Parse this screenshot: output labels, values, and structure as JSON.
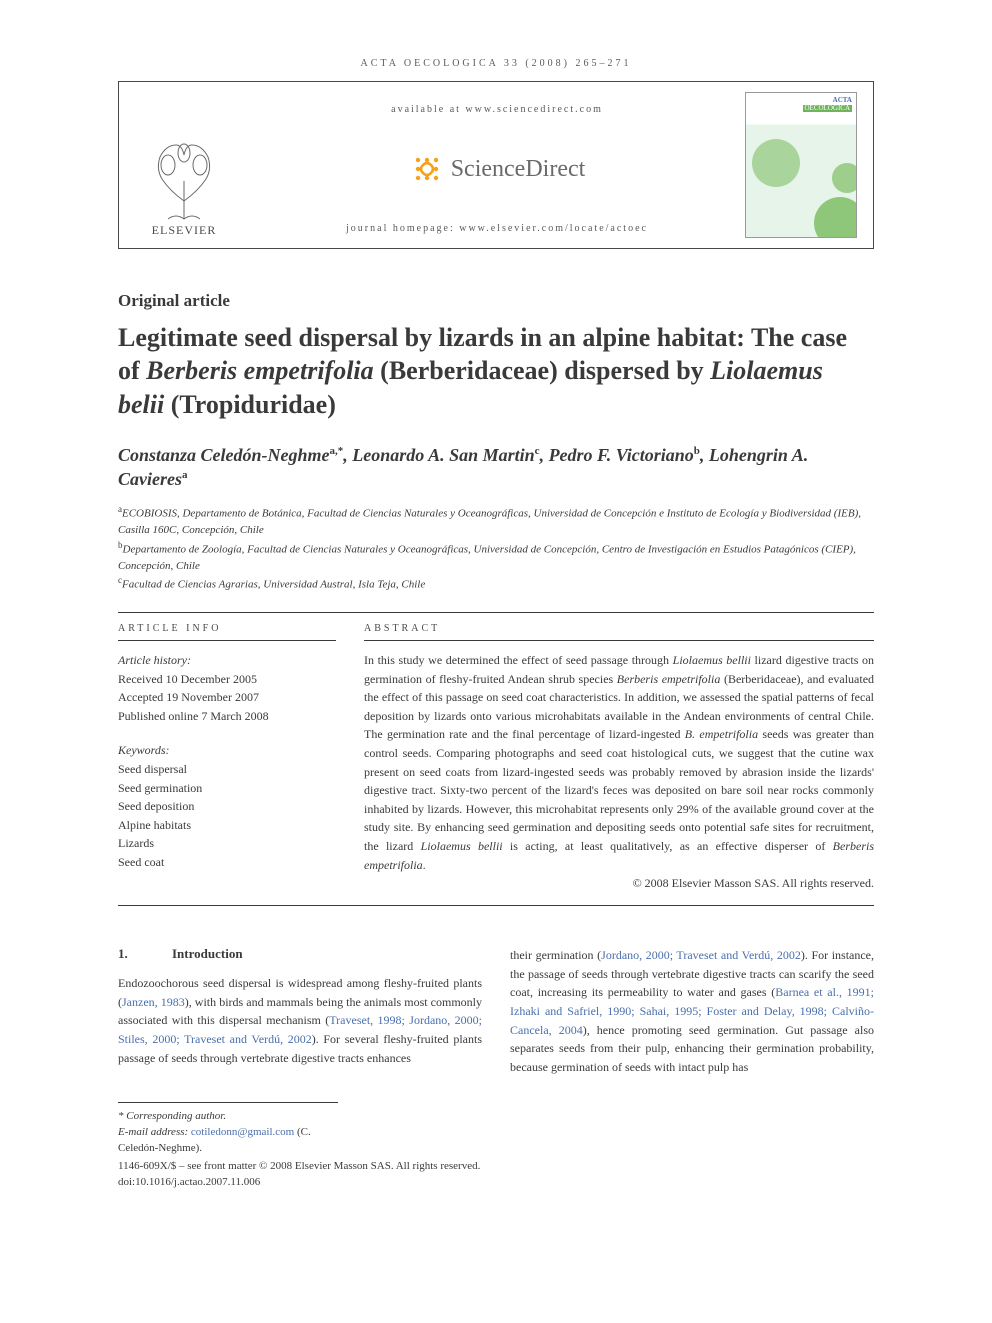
{
  "running_head": "ACTA OECOLOGICA 33 (2008) 265–271",
  "header": {
    "available": "available at www.sciencedirect.com",
    "sd_brand": "ScienceDirect",
    "homepage": "journal homepage: www.elsevier.com/locate/actoec",
    "elsevier": "ELSEVIER",
    "cover_acta": "ACTA",
    "cover_oeco": "OECOLOGICA"
  },
  "article_type": "Original article",
  "title_html": "Legitimate seed dispersal by lizards in an alpine habitat: The case of <em>Berberis empetrifolia</em> (Berberidaceae) dispersed by <em>Liolaemus belii</em> (Tropiduridae)",
  "authors_html": "Constanza Celedón-Neghme<sup>a,*</sup>, Leonardo A. San Martin<sup>c</sup>, Pedro F. Victoriano<sup>b</sup>, Lohengrin A. Cavieres<sup>a</sup>",
  "affiliations": {
    "a": "ECOBIOSIS, Departamento de Botánica, Facultad de Ciencias Naturales y Oceanográficas, Universidad de Concepción e Instituto de Ecología y Biodiversidad (IEB), Casilla 160C, Concepción, Chile",
    "b": "Departamento de Zoología, Facultad de Ciencias Naturales y Oceanográficas, Universidad de Concepción, Centro de Investigación en Estudios Patagónicos (CIEP), Concepción, Chile",
    "c": "Facultad de Ciencias Agrarias, Universidad Austral, Isla Teja, Chile"
  },
  "article_info": {
    "heading": "ARTICLE INFO",
    "history_label": "Article history:",
    "received": "Received 10 December 2005",
    "accepted": "Accepted 19 November 2007",
    "published": "Published online 7 March 2008",
    "keywords_label": "Keywords:",
    "keywords": [
      "Seed dispersal",
      "Seed germination",
      "Seed deposition",
      "Alpine habitats",
      "Lizards",
      "Seed coat"
    ]
  },
  "abstract": {
    "heading": "ABSTRACT",
    "text_html": "In this study we determined the effect of seed passage through <em>Liolaemus bellii</em> lizard digestive tracts on germination of fleshy-fruited Andean shrub species <em>Berberis empetrifolia</em> (Berberidaceae), and evaluated the effect of this passage on seed coat characteristics. In addition, we assessed the spatial patterns of fecal deposition by lizards onto various microhabitats available in the Andean environments of central Chile. The germination rate and the final percentage of lizard-ingested <em>B. empetrifolia</em> seeds was greater than control seeds. Comparing photographs and seed coat histological cuts, we suggest that the cutine wax present on seed coats from lizard-ingested seeds was probably removed by abrasion inside the lizards' digestive tract. Sixty-two percent of the lizard's feces was deposited on bare soil near rocks commonly inhabited by lizards. However, this microhabitat represents only 29% of the available ground cover at the study site. By enhancing seed germination and depositing seeds onto potential safe sites for recruitment, the lizard <em>Liolaemus bellii</em> is acting, at least qualitatively, as an effective disperser of <em>Berberis empetrifolia</em>.",
    "copyright": "© 2008 Elsevier Masson SAS. All rights reserved."
  },
  "body": {
    "sec_num": "1.",
    "sec_title": "Introduction",
    "left_html": "Endozoochorous seed dispersal is widespread among fleshy-fruited plants (<span class=\"link\">Janzen, 1983</span>), with birds and mammals being the animals most commonly associated with this dispersal mechanism (<span class=\"link\">Traveset, 1998; Jordano, 2000; Stiles, 2000; Traveset and Verdú, 2002</span>). For several fleshy-fruited plants passage of seeds through vertebrate digestive tracts enhances",
    "right_html": "their germination (<span class=\"link\">Jordano, 2000; Traveset and Verdú, 2002</span>). For instance, the passage of seeds through vertebrate digestive tracts can scarify the seed coat, increasing its permeability to water and gases (<span class=\"link\">Barnea et al., 1991; Izhaki and Safriel, 1990; Sahai, 1995; Foster and Delay, 1998; Calviño-Cancela, 2004</span>), hence promoting seed germination. Gut passage also separates seeds from their pulp, enhancing their germination probability, because germination of seeds with intact pulp has"
  },
  "footer": {
    "corresponding": "* Corresponding author.",
    "email_label": "E-mail address:",
    "email": "cotiledonn@gmail.com",
    "email_name": "(C. Celedón-Neghme).",
    "line1": "1146-609X/$ – see front matter © 2008 Elsevier Masson SAS. All rights reserved.",
    "doi": "doi:10.1016/j.actao.2007.11.006"
  },
  "colors": {
    "text": "#3a3a3a",
    "link": "#4a6fae",
    "cover_green": "#8fc77a",
    "cover_bg": "#e6f4ea",
    "sd_orange": "#f6a11a"
  }
}
